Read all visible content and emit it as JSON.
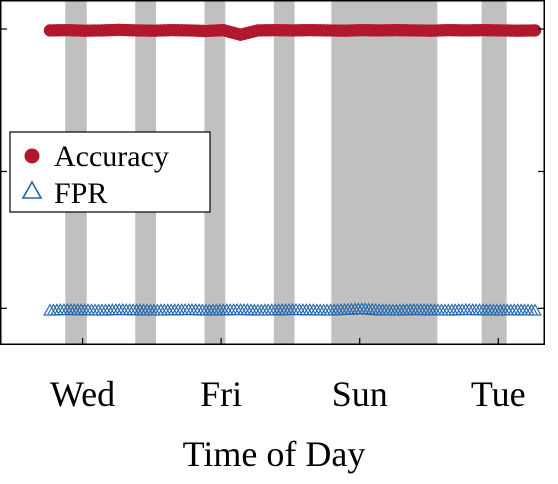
{
  "chart_data": {
    "type": "scatter",
    "title": "",
    "xlabel": "Time of Day",
    "ylabel": "",
    "x_unit": "day",
    "xlim": [
      0,
      7
    ],
    "ylim": [
      0,
      1
    ],
    "x_ticks": [
      {
        "value": 0.47,
        "label": "Wed"
      },
      {
        "value": 2.47,
        "label": "Fri"
      },
      {
        "value": 4.47,
        "label": "Sun"
      },
      {
        "value": 6.47,
        "label": "Tue"
      }
    ],
    "y_ticks": [
      0.02,
      0.5,
      1.0
    ],
    "grid": false,
    "legend": {
      "position": "center-left"
    },
    "shaded_periods": [
      [
        0.22,
        0.53
      ],
      [
        1.23,
        1.53
      ],
      [
        2.23,
        2.53
      ],
      [
        3.23,
        3.53
      ],
      [
        4.06,
        5.59
      ],
      [
        6.23,
        6.59
      ]
    ],
    "series": [
      {
        "name": "Accuracy",
        "marker": "filled-circle",
        "color": "#B2182B",
        "x_start": 0.0,
        "x_end": 7.0,
        "x": [
          0.0,
          0.25,
          0.5,
          0.75,
          1.0,
          1.25,
          1.5,
          1.75,
          2.0,
          2.25,
          2.5,
          2.75,
          3.0,
          3.25,
          3.5,
          3.75,
          4.0,
          4.25,
          4.5,
          4.75,
          5.0,
          5.25,
          5.5,
          5.75,
          6.0,
          6.25,
          6.5,
          6.75,
          7.0
        ],
        "values": [
          0.995,
          0.996,
          0.994,
          0.995,
          0.997,
          0.995,
          0.994,
          0.996,
          0.995,
          0.993,
          0.996,
          0.98,
          0.995,
          0.996,
          0.995,
          0.996,
          0.995,
          0.994,
          0.996,
          0.995,
          0.996,
          0.995,
          0.994,
          0.996,
          0.995,
          0.996,
          0.995,
          0.994,
          0.995
        ]
      },
      {
        "name": "FPR",
        "marker": "open-triangle",
        "color": "#2166AC",
        "x_start": 0.0,
        "x_end": 7.0,
        "x": [
          0.0,
          0.25,
          0.5,
          0.75,
          1.0,
          1.25,
          1.5,
          1.75,
          2.0,
          2.25,
          2.5,
          2.75,
          3.0,
          3.25,
          3.5,
          3.75,
          4.0,
          4.25,
          4.5,
          4.75,
          5.0,
          5.25,
          5.5,
          5.75,
          6.0,
          6.25,
          6.5,
          6.75,
          7.0
        ],
        "values": [
          0.01,
          0.012,
          0.011,
          0.01,
          0.012,
          0.011,
          0.01,
          0.011,
          0.012,
          0.01,
          0.011,
          0.012,
          0.01,
          0.011,
          0.012,
          0.011,
          0.01,
          0.012,
          0.015,
          0.011,
          0.01,
          0.012,
          0.011,
          0.01,
          0.012,
          0.011,
          0.01,
          0.011,
          0.01
        ]
      }
    ]
  }
}
